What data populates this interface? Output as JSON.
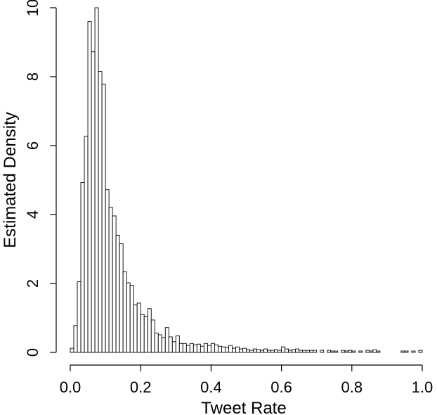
{
  "chart_data": {
    "type": "bar",
    "title": "",
    "xlabel": "Tweet Rate",
    "ylabel": "Estimated Density",
    "xlim": [
      0.0,
      1.0
    ],
    "ylim": [
      0,
      10
    ],
    "bin_width": 0.01,
    "bin_start": 0.0,
    "x_ticks": [
      "0.0",
      "0.2",
      "0.4",
      "0.6",
      "0.8",
      "1.0"
    ],
    "y_ticks": [
      "0",
      "2",
      "4",
      "6",
      "8",
      "10"
    ],
    "grid": false,
    "legend": "none",
    "values": [
      0.12,
      0.78,
      2.05,
      4.93,
      6.27,
      9.6,
      8.72,
      10.0,
      8.15,
      7.78,
      4.72,
      4.21,
      3.96,
      3.4,
      3.15,
      2.34,
      2.02,
      1.95,
      1.38,
      1.43,
      1.1,
      1.05,
      1.27,
      0.94,
      0.56,
      0.51,
      0.43,
      0.72,
      0.45,
      0.31,
      0.48,
      0.26,
      0.26,
      0.2,
      0.26,
      0.22,
      0.24,
      0.18,
      0.26,
      0.2,
      0.26,
      0.22,
      0.18,
      0.16,
      0.14,
      0.2,
      0.12,
      0.16,
      0.1,
      0.12,
      0.08,
      0.06,
      0.1,
      0.08,
      0.06,
      0.1,
      0.06,
      0.06,
      0.08,
      0.06,
      0.16,
      0.1,
      0.06,
      0.08,
      0.1,
      0.06,
      0.06,
      0.06,
      0.06,
      0.06,
      0.0,
      0.06,
      0.0,
      0.06,
      0.04,
      0.04,
      0.0,
      0.06,
      0.04,
      0.06,
      0.04,
      0.0,
      0.04,
      0.0,
      0.06,
      0.04,
      0.08,
      0.04,
      0.0,
      0.0,
      0.0,
      0.0,
      0.0,
      0.0,
      0.04,
      0.04,
      0.0,
      0.04,
      0.0,
      0.06
    ]
  }
}
